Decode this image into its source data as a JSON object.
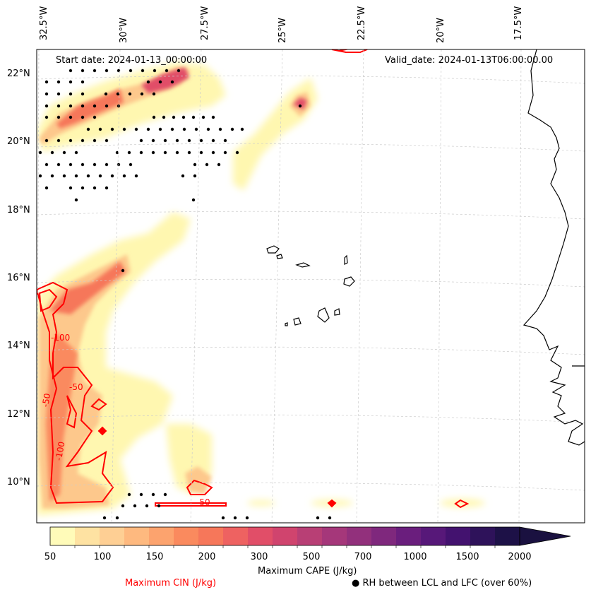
{
  "map": {
    "start_date": "Start date: 2024-01-13_00:00:00",
    "valid_date": "Valid_date: 2024-01-13T06:00:00.00",
    "longitude_labels": [
      "32.5°W",
      "30°W",
      "27.5°W",
      "25°W",
      "22.5°W",
      "20°W",
      "17.5°W"
    ],
    "latitude_labels": [
      "22°N",
      "20°N",
      "18°N",
      "16°N",
      "14°N",
      "12°N",
      "10°N"
    ],
    "cin_contour_labels": [
      "-100",
      "-50",
      "-50",
      "-100",
      "-50"
    ]
  },
  "colorbar": {
    "title": "Maximum CAPE (J/kg)",
    "tick_labels": [
      "50",
      "100",
      "150",
      "200",
      "300",
      "500",
      "700",
      "1000",
      "1500",
      "2000"
    ],
    "levels": [
      50,
      75,
      100,
      125,
      150,
      175,
      200,
      250,
      300,
      400,
      500,
      600,
      700,
      800,
      1000,
      1250,
      1500,
      1750,
      2000,
      2500
    ],
    "colors": [
      "#fffbb9",
      "#fee2a2",
      "#fecf94",
      "#feb97f",
      "#fca36e",
      "#fa8a5e",
      "#f6775a",
      "#ee6261",
      "#e14e68",
      "#d0446e",
      "#b83f75",
      "#a5377a",
      "#92307c",
      "#7f287d",
      "#6a1e7d",
      "#571879",
      "#43126f",
      "#2e125a",
      "#1d1147"
    ],
    "extend_color": "#1a1140"
  },
  "legend": {
    "cin_label": "Maximum CIN (J/kg)",
    "rh_label": "RH between LCL and LFC (over 60%)",
    "rh_marker": "●",
    "cin_color": "#ff0000"
  }
}
